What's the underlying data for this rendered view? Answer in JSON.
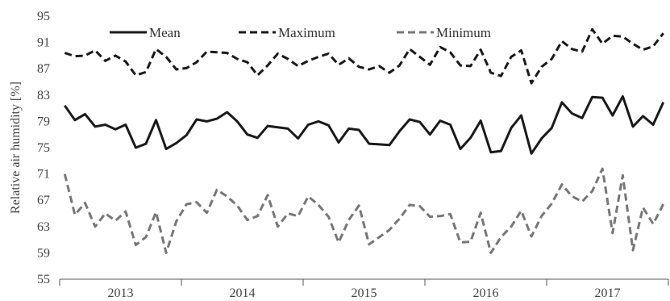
{
  "chart_data": {
    "type": "line",
    "title": "",
    "xlabel": "",
    "ylabel": "Relative air humidity [%]",
    "ylim": [
      55,
      95
    ],
    "yticks": [
      55,
      59,
      63,
      67,
      71,
      75,
      79,
      83,
      87,
      91,
      95
    ],
    "year_labels": [
      "2013",
      "2014",
      "2015",
      "2016",
      "2017"
    ],
    "x_unit": "month",
    "x_start": "2013-01",
    "grid": false,
    "legend_position": "top",
    "colors": {
      "mean": "#1a1a1a",
      "maximum": "#1a1a1a",
      "minimum": "#777777",
      "axis": "#555555"
    },
    "series": [
      {
        "name": "Mean",
        "style": "solid",
        "values": [
          81.4,
          79.2,
          80.1,
          78.2,
          78.5,
          77.8,
          78.5,
          75.0,
          75.6,
          79.2,
          74.8,
          75.7,
          76.9,
          79.3,
          79.0,
          79.4,
          80.4,
          79.0,
          77.0,
          76.5,
          78.3,
          78.1,
          77.9,
          76.4,
          78.5,
          79.0,
          78.4,
          75.8,
          77.9,
          77.7,
          75.6,
          75.5,
          75.4,
          77.5,
          79.3,
          78.9,
          77.0,
          79.1,
          78.5,
          74.8,
          76.5,
          79.1,
          74.3,
          74.5,
          78.0,
          79.9,
          74.1,
          76.4,
          78.0,
          81.9,
          80.2,
          79.5,
          82.7,
          82.6,
          79.9,
          82.8,
          78.2,
          79.8,
          78.5,
          81.9
        ]
      },
      {
        "name": "Maximum",
        "style": "dashed",
        "values": [
          89.4,
          88.9,
          89.0,
          89.8,
          88.2,
          89.0,
          88.1,
          86.0,
          86.5,
          90.0,
          88.8,
          86.9,
          87.1,
          88.0,
          89.6,
          89.5,
          89.4,
          88.5,
          88.0,
          86.0,
          87.5,
          89.3,
          88.5,
          87.4,
          88.2,
          88.8,
          89.3,
          87.6,
          88.6,
          87.3,
          86.9,
          87.4,
          86.4,
          87.5,
          90.0,
          88.8,
          87.6,
          90.3,
          89.5,
          87.5,
          87.4,
          89.9,
          86.4,
          85.9,
          88.8,
          89.8,
          84.8,
          87.3,
          88.5,
          91.2,
          90.0,
          89.6,
          93.0,
          90.8,
          92.0,
          91.9,
          90.8,
          89.9,
          90.4,
          92.4
        ]
      },
      {
        "name": "Minimum",
        "style": "dashed",
        "values": [
          71.0,
          64.8,
          66.6,
          63.0,
          65.0,
          63.9,
          65.3,
          60.2,
          61.4,
          65.2,
          59.0,
          63.8,
          66.4,
          66.7,
          65.1,
          68.6,
          67.6,
          66.2,
          64.0,
          64.6,
          67.8,
          63.0,
          65.0,
          64.6,
          67.6,
          66.3,
          64.5,
          60.6,
          64.0,
          66.2,
          60.3,
          61.4,
          62.5,
          64.2,
          66.3,
          66.1,
          64.5,
          64.6,
          64.9,
          60.6,
          60.7,
          65.1,
          59.0,
          61.4,
          63.0,
          65.4,
          61.5,
          64.6,
          66.5,
          69.4,
          67.6,
          66.8,
          68.4,
          71.8,
          62.0,
          70.8,
          59.4,
          65.9,
          63.4,
          66.4
        ]
      }
    ]
  }
}
